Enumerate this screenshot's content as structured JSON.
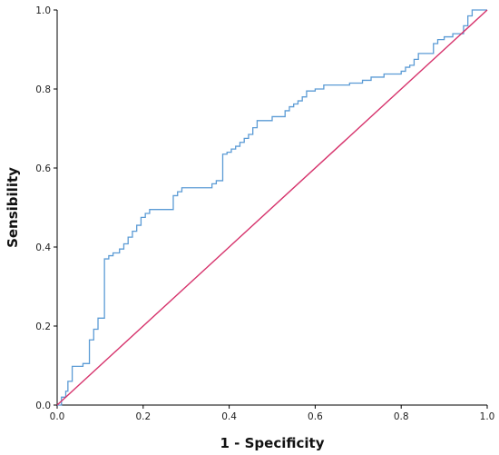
{
  "chart_data": {
    "type": "line",
    "title": "",
    "xlabel": "1 - Specificity",
    "ylabel": "Sensibility",
    "xlim": [
      0,
      1
    ],
    "ylim": [
      0,
      1
    ],
    "xticks": [
      "0.0",
      "0.2",
      "0.4",
      "0.6",
      "0.8",
      "1.0"
    ],
    "yticks": [
      "0.0",
      "0.2",
      "0.4",
      "0.6",
      "0.8",
      "1.0"
    ],
    "grid": false,
    "legend": "none",
    "series": [
      {
        "kind": "step",
        "color": "#5b9bd5",
        "points": [
          [
            0.0,
            0.0
          ],
          [
            0.01,
            0.0
          ],
          [
            0.01,
            0.02
          ],
          [
            0.02,
            0.02
          ],
          [
            0.02,
            0.035
          ],
          [
            0.025,
            0.035
          ],
          [
            0.025,
            0.06
          ],
          [
            0.035,
            0.06
          ],
          [
            0.035,
            0.098
          ],
          [
            0.06,
            0.098
          ],
          [
            0.06,
            0.105
          ],
          [
            0.075,
            0.105
          ],
          [
            0.075,
            0.165
          ],
          [
            0.085,
            0.165
          ],
          [
            0.085,
            0.192
          ],
          [
            0.095,
            0.192
          ],
          [
            0.095,
            0.22
          ],
          [
            0.11,
            0.22
          ],
          [
            0.11,
            0.37
          ],
          [
            0.12,
            0.37
          ],
          [
            0.12,
            0.378
          ],
          [
            0.13,
            0.378
          ],
          [
            0.13,
            0.385
          ],
          [
            0.145,
            0.385
          ],
          [
            0.145,
            0.395
          ],
          [
            0.155,
            0.395
          ],
          [
            0.155,
            0.408
          ],
          [
            0.165,
            0.408
          ],
          [
            0.165,
            0.425
          ],
          [
            0.175,
            0.425
          ],
          [
            0.175,
            0.44
          ],
          [
            0.185,
            0.44
          ],
          [
            0.185,
            0.455
          ],
          [
            0.195,
            0.455
          ],
          [
            0.195,
            0.475
          ],
          [
            0.205,
            0.475
          ],
          [
            0.205,
            0.485
          ],
          [
            0.215,
            0.485
          ],
          [
            0.215,
            0.495
          ],
          [
            0.27,
            0.495
          ],
          [
            0.27,
            0.53
          ],
          [
            0.28,
            0.53
          ],
          [
            0.28,
            0.54
          ],
          [
            0.29,
            0.54
          ],
          [
            0.29,
            0.55
          ],
          [
            0.36,
            0.55
          ],
          [
            0.36,
            0.56
          ],
          [
            0.37,
            0.56
          ],
          [
            0.37,
            0.568
          ],
          [
            0.385,
            0.568
          ],
          [
            0.385,
            0.635
          ],
          [
            0.395,
            0.635
          ],
          [
            0.395,
            0.64
          ],
          [
            0.405,
            0.64
          ],
          [
            0.405,
            0.648
          ],
          [
            0.415,
            0.648
          ],
          [
            0.415,
            0.655
          ],
          [
            0.425,
            0.655
          ],
          [
            0.425,
            0.665
          ],
          [
            0.435,
            0.665
          ],
          [
            0.435,
            0.675
          ],
          [
            0.445,
            0.675
          ],
          [
            0.445,
            0.685
          ],
          [
            0.455,
            0.685
          ],
          [
            0.455,
            0.702
          ],
          [
            0.465,
            0.702
          ],
          [
            0.465,
            0.72
          ],
          [
            0.5,
            0.72
          ],
          [
            0.5,
            0.73
          ],
          [
            0.53,
            0.73
          ],
          [
            0.53,
            0.745
          ],
          [
            0.54,
            0.745
          ],
          [
            0.54,
            0.755
          ],
          [
            0.55,
            0.755
          ],
          [
            0.55,
            0.762
          ],
          [
            0.56,
            0.762
          ],
          [
            0.56,
            0.77
          ],
          [
            0.57,
            0.77
          ],
          [
            0.57,
            0.78
          ],
          [
            0.58,
            0.78
          ],
          [
            0.58,
            0.795
          ],
          [
            0.6,
            0.795
          ],
          [
            0.6,
            0.8
          ],
          [
            0.62,
            0.8
          ],
          [
            0.62,
            0.81
          ],
          [
            0.68,
            0.81
          ],
          [
            0.68,
            0.815
          ],
          [
            0.71,
            0.815
          ],
          [
            0.71,
            0.822
          ],
          [
            0.73,
            0.822
          ],
          [
            0.73,
            0.83
          ],
          [
            0.76,
            0.83
          ],
          [
            0.76,
            0.838
          ],
          [
            0.8,
            0.838
          ],
          [
            0.8,
            0.845
          ],
          [
            0.81,
            0.845
          ],
          [
            0.81,
            0.855
          ],
          [
            0.82,
            0.855
          ],
          [
            0.82,
            0.86
          ],
          [
            0.83,
            0.86
          ],
          [
            0.83,
            0.875
          ],
          [
            0.84,
            0.875
          ],
          [
            0.84,
            0.89
          ],
          [
            0.875,
            0.89
          ],
          [
            0.875,
            0.915
          ],
          [
            0.885,
            0.915
          ],
          [
            0.885,
            0.925
          ],
          [
            0.9,
            0.925
          ],
          [
            0.9,
            0.932
          ],
          [
            0.92,
            0.932
          ],
          [
            0.92,
            0.94
          ],
          [
            0.945,
            0.94
          ],
          [
            0.945,
            0.96
          ],
          [
            0.955,
            0.96
          ],
          [
            0.955,
            0.985
          ],
          [
            0.965,
            0.985
          ],
          [
            0.965,
            1.0
          ],
          [
            1.0,
            1.0
          ]
        ]
      },
      {
        "kind": "reference",
        "color": "#d6336c",
        "points": [
          [
            0,
            0
          ],
          [
            1,
            1
          ]
        ]
      }
    ]
  }
}
